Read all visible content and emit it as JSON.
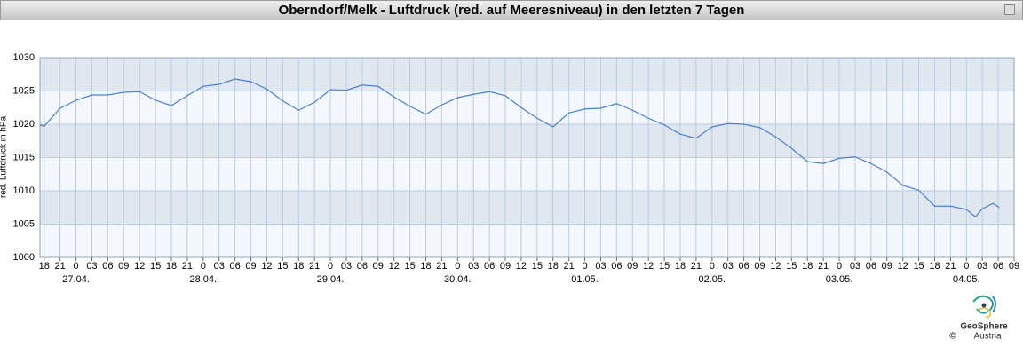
{
  "chart_data": {
    "type": "line",
    "title": "Oberndorf/Melk - Luftdruck (red. auf Meeresniveau) in den letzten 7 Tagen",
    "ylabel": "red. Luftdruck in hPa",
    "ylim": [
      1000,
      1030
    ],
    "yticks": [
      1000,
      1005,
      1010,
      1015,
      1020,
      1025,
      1030
    ],
    "xlim": [
      17.2,
      201
    ],
    "xticks": [
      18,
      21,
      {
        "value": 24,
        "label": "0"
      },
      {
        "value": 27,
        "label": "03"
      },
      {
        "value": 30,
        "label": "06"
      },
      {
        "value": 33,
        "label": "09"
      },
      {
        "value": 36,
        "label": "12"
      },
      {
        "value": 39,
        "label": "15"
      },
      {
        "value": 42,
        "label": "18"
      },
      {
        "value": 45,
        "label": "21"
      },
      {
        "value": 48,
        "label": "0"
      },
      {
        "value": 51,
        "label": "03"
      },
      {
        "value": 54,
        "label": "06"
      },
      {
        "value": 57,
        "label": "09"
      },
      {
        "value": 60,
        "label": "12"
      },
      {
        "value": 63,
        "label": "15"
      },
      {
        "value": 66,
        "label": "18"
      },
      {
        "value": 69,
        "label": "21"
      },
      {
        "value": 72,
        "label": "0"
      },
      {
        "value": 75,
        "label": "03"
      },
      {
        "value": 78,
        "label": "06"
      },
      {
        "value": 81,
        "label": "09"
      },
      {
        "value": 84,
        "label": "12"
      },
      {
        "value": 87,
        "label": "15"
      },
      {
        "value": 90,
        "label": "18"
      },
      {
        "value": 93,
        "label": "21"
      },
      {
        "value": 96,
        "label": "0"
      },
      {
        "value": 99,
        "label": "03"
      },
      {
        "value": 102,
        "label": "06"
      },
      {
        "value": 105,
        "label": "09"
      },
      {
        "value": 108,
        "label": "12"
      },
      {
        "value": 111,
        "label": "15"
      },
      {
        "value": 114,
        "label": "18"
      },
      {
        "value": 117,
        "label": "21"
      },
      {
        "value": 120,
        "label": "0"
      },
      {
        "value": 123,
        "label": "03"
      },
      {
        "value": 126,
        "label": "06"
      },
      {
        "value": 129,
        "label": "09"
      },
      {
        "value": 132,
        "label": "12"
      },
      {
        "value": 135,
        "label": "15"
      },
      {
        "value": 138,
        "label": "18"
      },
      {
        "value": 141,
        "label": "21"
      },
      {
        "value": 144,
        "label": "0"
      },
      {
        "value": 147,
        "label": "03"
      },
      {
        "value": 150,
        "label": "06"
      },
      {
        "value": 153,
        "label": "09"
      },
      {
        "value": 156,
        "label": "12"
      },
      {
        "value": 159,
        "label": "15"
      },
      {
        "value": 162,
        "label": "18"
      },
      {
        "value": 165,
        "label": "21"
      },
      {
        "value": 168,
        "label": "0"
      },
      {
        "value": 171,
        "label": "03"
      },
      {
        "value": 174,
        "label": "06"
      },
      {
        "value": 177,
        "label": "09"
      },
      {
        "value": 180,
        "label": "12"
      },
      {
        "value": 183,
        "label": "15"
      },
      {
        "value": 186,
        "label": "18"
      },
      {
        "value": 189,
        "label": "21"
      },
      {
        "value": 192,
        "label": "0"
      },
      {
        "value": 195,
        "label": "03"
      },
      {
        "value": 198,
        "label": "06"
      },
      {
        "value": 201,
        "label": "09"
      }
    ],
    "date_ticks": [
      {
        "value": 24,
        "label": "27.04."
      },
      {
        "value": 48,
        "label": "28.04."
      },
      {
        "value": 72,
        "label": "29.04."
      },
      {
        "value": 96,
        "label": "30.04."
      },
      {
        "value": 120,
        "label": "01.05."
      },
      {
        "value": 144,
        "label": "02.05."
      },
      {
        "value": 168,
        "label": "03.05."
      },
      {
        "value": 192,
        "label": "04.05."
      }
    ],
    "grid": true,
    "x": [
      17.2,
      18,
      21,
      24,
      27,
      30,
      33,
      36,
      39,
      42,
      45,
      48,
      51,
      54,
      57,
      60,
      63,
      66,
      69,
      72,
      75,
      78,
      81,
      84,
      87,
      90,
      93,
      96,
      99,
      102,
      105,
      108,
      111,
      114,
      117,
      120,
      123,
      126,
      129,
      132,
      135,
      138,
      141,
      144,
      147,
      150,
      153,
      156,
      159,
      162,
      165,
      168,
      171,
      174,
      177,
      180,
      183,
      186,
      189,
      192,
      193.7,
      195,
      197,
      198.2
    ],
    "series": [
      {
        "color": "#4a7fd4",
        "values": [
          1019.9,
          1019.7,
          1022.4,
          1023.6,
          1024.4,
          1024.4,
          1024.8,
          1024.9,
          1023.6,
          1022.8,
          1024.3,
          1025.7,
          1026.0,
          1026.8,
          1026.4,
          1025.3,
          1023.5,
          1022.1,
          1023.3,
          1025.2,
          1025.1,
          1025.9,
          1025.7,
          1024.1,
          1022.7,
          1021.5,
          1022.9,
          1024.0,
          1024.5,
          1024.9,
          1024.3,
          1022.5,
          1020.9,
          1019.6,
          1021.7,
          1022.3,
          1022.4,
          1023.1,
          1022.1,
          1020.9,
          1019.9,
          1018.5,
          1017.9,
          1019.6,
          1020.1,
          1020.0,
          1019.5,
          1018.1,
          1016.4,
          1014.4,
          1014.1,
          1014.9,
          1015.1,
          1014.1,
          1012.8,
          1010.8,
          1010.1,
          1007.7,
          1007.7,
          1007.2,
          1006.1,
          1007.3,
          1008.1,
          1007.5
        ]
      }
    ]
  },
  "footer": {
    "brand": "GeoSphere",
    "sub": "Austria",
    "copyright": "©"
  }
}
